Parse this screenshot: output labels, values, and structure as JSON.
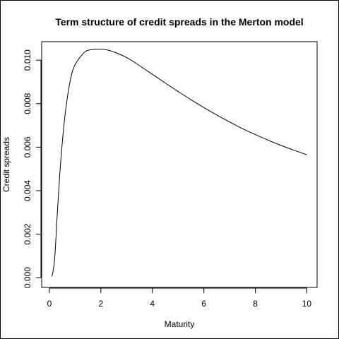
{
  "chart_data": {
    "type": "line",
    "title": "Term structure of credit spreads in the Merton model",
    "xlabel": "Maturity",
    "ylabel": "Credit spreads",
    "xlim": [
      -0.3,
      10.4
    ],
    "ylim": [
      -0.00045,
      0.01085
    ],
    "xticks": [
      0,
      2,
      4,
      6,
      8,
      10
    ],
    "xtick_labels": [
      "0",
      "2",
      "4",
      "6",
      "8",
      "10"
    ],
    "yticks": [
      0.0,
      0.002,
      0.004,
      0.006,
      0.008,
      0.01
    ],
    "ytick_labels": [
      "0.000",
      "0.002",
      "0.004",
      "0.006",
      "0.008",
      "0.010"
    ],
    "grid": false,
    "series": [
      {
        "x": [
          0.1,
          0.2,
          0.3,
          0.4,
          0.5,
          0.6,
          0.7,
          0.8,
          0.9,
          1.0,
          1.2,
          1.4,
          1.6,
          1.8,
          2.0,
          2.25,
          2.5,
          3.0,
          3.5,
          4.0,
          4.5,
          5.0,
          5.5,
          6.0,
          6.5,
          7.0,
          7.5,
          8.0,
          8.5,
          9.0,
          9.5,
          10.0
        ],
        "y": [
          5e-05,
          0.0008,
          0.0028,
          0.0047,
          0.0062,
          0.0074,
          0.0083,
          0.009,
          0.0095,
          0.0098,
          0.01015,
          0.0104,
          0.01048,
          0.0105,
          0.0105,
          0.01047,
          0.01038,
          0.01012,
          0.00975,
          0.00935,
          0.00895,
          0.00856,
          0.00818,
          0.00782,
          0.00748,
          0.00716,
          0.00685,
          0.00658,
          0.00632,
          0.00608,
          0.00586,
          0.00565
        ],
        "color": "#000000"
      }
    ]
  }
}
